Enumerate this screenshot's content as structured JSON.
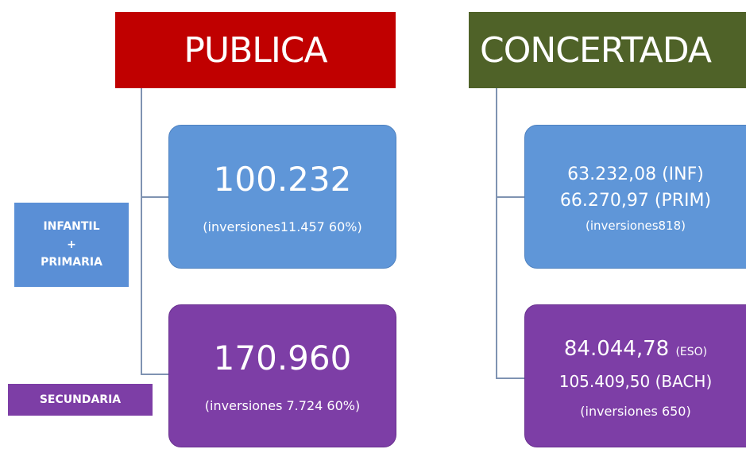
{
  "headers": [
    "PUBLICA",
    "CONCERTADA"
  ],
  "publica": [
    {
      "main": "100.232",
      "sub": "(inversiones11.457 60%)"
    },
    {
      "main": "170.960",
      "sub": "(inversiones 7.724 60%)"
    }
  ],
  "concertada": [
    {
      "lines": [
        "63.232,08 (INF)",
        "66.270,97 (PRIM)",
        "(inversiones818)"
      ]
    },
    {
      "lines": [
        "84.044,78",
        "(ESO)",
        "105.409,50 (BACH)",
        "(inversiones 650)"
      ]
    }
  ],
  "labels": [
    [
      "INFANTIL",
      "+",
      "PRIMARIA"
    ],
    [
      "SECUNDARIA"
    ]
  ]
}
